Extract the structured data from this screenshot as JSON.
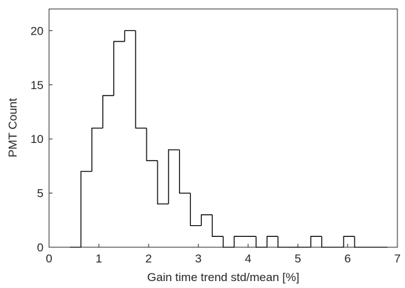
{
  "chart_data": {
    "type": "histogram",
    "xlabel": "Gain time trend std/mean [%]",
    "ylabel": "PMT Count",
    "bins": [
      0.42,
      0.64,
      0.86,
      1.08,
      1.3,
      1.52,
      1.74,
      1.96,
      2.18,
      2.4,
      2.62,
      2.84,
      3.06,
      3.28,
      3.5,
      3.72,
      3.94,
      4.16,
      4.38,
      4.6,
      4.82,
      5.04,
      5.26,
      5.48,
      5.7,
      5.92,
      6.14,
      6.36,
      6.58,
      6.8
    ],
    "values": [
      0,
      7,
      11,
      14,
      19,
      20,
      11,
      8,
      4,
      9,
      5,
      2,
      3,
      1,
      0,
      1,
      1,
      0,
      1,
      0,
      0,
      0,
      1,
      0,
      0,
      1,
      0,
      0,
      0
    ],
    "color": "#000000",
    "xlim": [
      0,
      7
    ],
    "xticks": [
      0,
      1,
      2,
      3,
      4,
      5,
      6,
      7
    ],
    "ylim": [
      0,
      22
    ],
    "yticks": [
      0,
      5,
      10,
      15,
      20
    ]
  }
}
